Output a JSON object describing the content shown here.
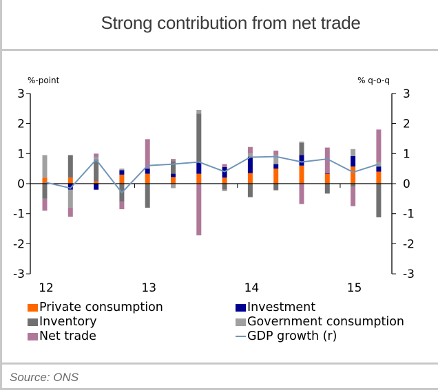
{
  "title": "Strong contribution from net trade",
  "source": "Source: ONS",
  "chart_data": {
    "type": "bar",
    "stacked": true,
    "title": "Strong contribution from net trade",
    "ylabel_left": "%-point",
    "ylabel_right": "% q-o-q",
    "ylim": [
      -3,
      3
    ],
    "yticks": [
      3,
      2,
      1,
      0,
      -1,
      -2,
      -3
    ],
    "x_tick_labels": [
      "12",
      "13",
      "14",
      "15"
    ],
    "x_tick_label_quarters": [
      0,
      4,
      8,
      12
    ],
    "quarters": [
      "12Q1",
      "12Q2",
      "12Q3",
      "12Q4",
      "13Q1",
      "13Q2",
      "13Q3",
      "13Q4",
      "14Q1",
      "14Q2",
      "14Q3",
      "14Q4",
      "15Q1",
      "15Q2"
    ],
    "grid": false,
    "legend_position": "bottom",
    "series": [
      {
        "name": "Private consumption",
        "color": "#FF6600",
        "values": [
          0.2,
          0.2,
          0.08,
          0.3,
          0.33,
          0.22,
          0.33,
          0.2,
          0.35,
          0.5,
          0.6,
          0.33,
          0.57,
          0.4
        ]
      },
      {
        "name": "Investment",
        "color": "#000090",
        "values": [
          0.0,
          -0.2,
          -0.2,
          0.15,
          0.17,
          0.11,
          0.37,
          0.35,
          0.55,
          0.15,
          0.35,
          0.02,
          0.35,
          0.17
        ]
      },
      {
        "name": "Inventory",
        "color": "#707070",
        "values": [
          -0.5,
          0.75,
          0.72,
          -0.6,
          -0.8,
          0.42,
          1.63,
          -0.2,
          -0.45,
          -0.22,
          0.4,
          -0.33,
          -0.1,
          -1.12
        ]
      },
      {
        "name": "Government consumption",
        "color": "#A0A0A0",
        "values": [
          0.75,
          -0.6,
          0.08,
          0.05,
          0.0,
          -0.15,
          0.12,
          -0.05,
          0.1,
          0.3,
          0.05,
          0.0,
          0.23,
          0.15
        ]
      },
      {
        "name": "Net trade",
        "color": "#B07898",
        "values": [
          -0.4,
          -0.3,
          0.12,
          -0.25,
          0.98,
          0.07,
          -1.72,
          0.1,
          0.22,
          0.15,
          -0.68,
          0.85,
          -0.65,
          1.08
        ]
      },
      {
        "name": "GDP growth (r)",
        "type": "line",
        "axis": "right",
        "color": "#7095B8",
        "values": [
          0.05,
          -0.15,
          0.8,
          -0.3,
          0.6,
          0.65,
          0.72,
          0.4,
          0.88,
          0.9,
          0.72,
          0.82,
          0.38,
          0.65
        ]
      }
    ]
  },
  "legend": [
    {
      "label": "Private consumption",
      "color": "#FF6600",
      "kind": "box"
    },
    {
      "label": "Investment",
      "color": "#000090",
      "kind": "box"
    },
    {
      "label": "Inventory",
      "color": "#707070",
      "kind": "box"
    },
    {
      "label": "Government consumption",
      "color": "#A0A0A0",
      "kind": "box"
    },
    {
      "label": "Net trade",
      "color": "#B07898",
      "kind": "box"
    },
    {
      "label": "GDP growth (r)",
      "color": "#7095B8",
      "kind": "line"
    }
  ]
}
